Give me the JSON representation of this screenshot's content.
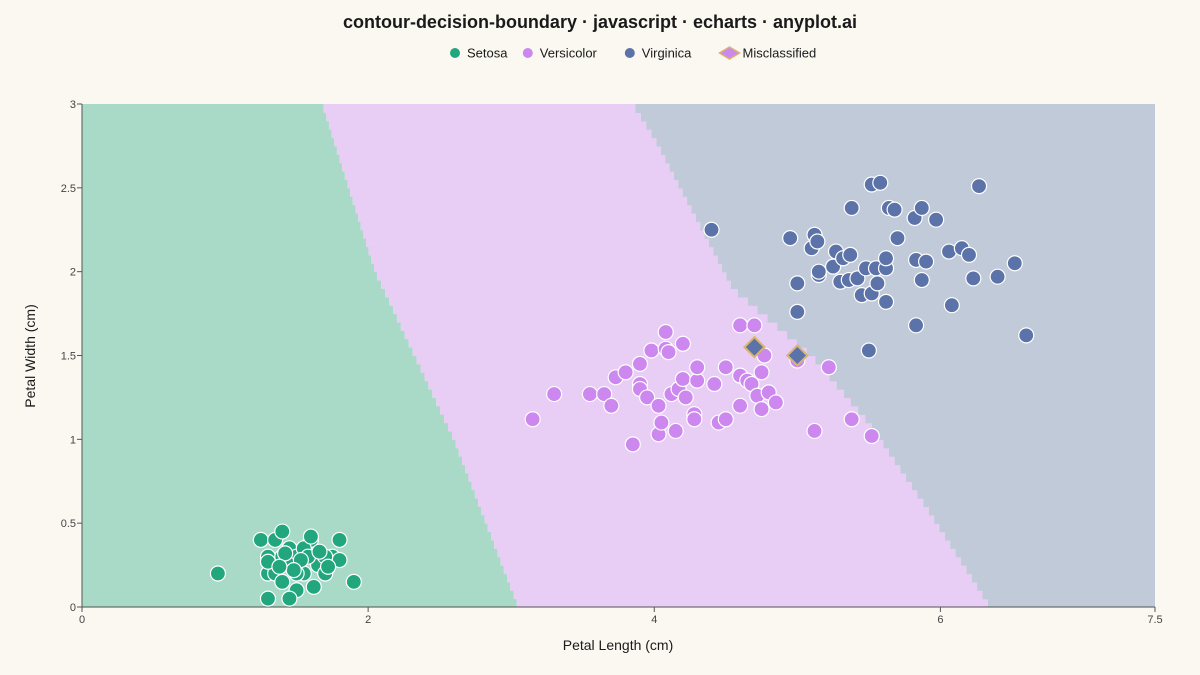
{
  "colors": {
    "setosa": "#22a67e",
    "versicolor": "#cc88ee",
    "virginica": "#5b73a8",
    "region_setosa": "#a9dac7",
    "region_versicolor": "#e8cdf5",
    "region_virginica": "#c1cad8",
    "misclassified_fill": "#5b73a8",
    "misclassified_stroke": "#d8b46e",
    "background": "#faf8f1"
  },
  "chart_data": {
    "type": "scatter",
    "title": "contour-decision-boundary · javascript · echarts · anyplot.ai",
    "xlabel": "Petal Length (cm)",
    "ylabel": "Petal Width (cm)",
    "xlim": [
      0,
      7.5
    ],
    "ylim": [
      0,
      3
    ],
    "x_ticks": [
      0,
      2,
      4,
      6,
      7.5
    ],
    "x_tick_labels": [
      "0",
      "2",
      "4",
      "6",
      "7.5"
    ],
    "y_ticks": [
      0,
      0.5,
      1,
      1.5,
      2,
      2.5,
      3
    ],
    "y_tick_labels": [
      "0",
      "0.5",
      "1",
      "1.5",
      "2",
      "2.5",
      "3"
    ],
    "legend": {
      "position": "top-center",
      "entries": [
        "Setosa",
        "Versicolor",
        "Virginica",
        "Misclassified"
      ]
    },
    "decision_boundaries": {
      "setosa_versicolor": [
        [
          3.05,
          0
        ],
        [
          2.6,
          1
        ],
        [
          2.05,
          2
        ],
        [
          1.68,
          3
        ]
      ],
      "versicolor_virginica": [
        [
          6.35,
          0
        ],
        [
          5.9,
          0.6
        ],
        [
          5.5,
          1.1
        ],
        [
          5.1,
          1.5
        ],
        [
          4.55,
          1.9
        ],
        [
          4.0,
          2.8
        ],
        [
          3.85,
          3
        ]
      ]
    },
    "series": [
      {
        "name": "Setosa",
        "points": [
          [
            0.95,
            0.2
          ],
          [
            1.25,
            0.4
          ],
          [
            1.3,
            0.2
          ],
          [
            1.3,
            0.3
          ],
          [
            1.35,
            0.4
          ],
          [
            1.4,
            0.45
          ],
          [
            1.45,
            0.35
          ],
          [
            1.5,
            0.3
          ],
          [
            1.55,
            0.2
          ],
          [
            1.6,
            0.4
          ],
          [
            1.35,
            0.2
          ],
          [
            1.4,
            0.3
          ],
          [
            1.5,
            0.2
          ],
          [
            1.6,
            0.3
          ],
          [
            1.65,
            0.25
          ],
          [
            1.7,
            0.2
          ],
          [
            1.75,
            0.3
          ],
          [
            1.8,
            0.4
          ],
          [
            1.8,
            0.28
          ],
          [
            1.45,
            0.25
          ],
          [
            1.3,
            0.27
          ],
          [
            1.4,
            0.15
          ],
          [
            1.55,
            0.35
          ],
          [
            1.6,
            0.42
          ],
          [
            1.7,
            0.3
          ],
          [
            1.5,
            0.1
          ],
          [
            1.62,
            0.12
          ],
          [
            1.45,
            0.05
          ],
          [
            1.3,
            0.05
          ],
          [
            1.9,
            0.15
          ],
          [
            1.58,
            0.3
          ],
          [
            1.42,
            0.32
          ],
          [
            1.53,
            0.28
          ],
          [
            1.48,
            0.22
          ],
          [
            1.38,
            0.24
          ],
          [
            1.72,
            0.24
          ],
          [
            1.66,
            0.33
          ]
        ]
      },
      {
        "name": "Versicolor",
        "points": [
          [
            3.15,
            1.12
          ],
          [
            3.3,
            1.27
          ],
          [
            3.55,
            1.27
          ],
          [
            3.65,
            1.27
          ],
          [
            3.7,
            1.2
          ],
          [
            3.73,
            1.37
          ],
          [
            3.8,
            1.4
          ],
          [
            3.85,
            0.97
          ],
          [
            3.9,
            1.33
          ],
          [
            3.9,
            1.3
          ],
          [
            3.9,
            1.45
          ],
          [
            3.95,
            1.25
          ],
          [
            3.98,
            1.53
          ],
          [
            4.03,
            1.03
          ],
          [
            4.03,
            1.2
          ],
          [
            4.05,
            1.1
          ],
          [
            4.08,
            1.54
          ],
          [
            4.08,
            1.64
          ],
          [
            4.1,
            1.52
          ],
          [
            4.12,
            1.27
          ],
          [
            4.15,
            1.05
          ],
          [
            4.17,
            1.3
          ],
          [
            4.2,
            1.57
          ],
          [
            4.2,
            1.36
          ],
          [
            4.22,
            1.25
          ],
          [
            4.28,
            1.15
          ],
          [
            4.28,
            1.12
          ],
          [
            4.3,
            1.35
          ],
          [
            4.3,
            1.43
          ],
          [
            4.42,
            1.33
          ],
          [
            4.45,
            1.1
          ],
          [
            4.5,
            1.43
          ],
          [
            4.6,
            1.2
          ],
          [
            4.6,
            1.38
          ],
          [
            4.6,
            1.68
          ],
          [
            4.65,
            1.35
          ],
          [
            4.68,
            1.33
          ],
          [
            4.7,
            1.68
          ],
          [
            4.72,
            1.26
          ],
          [
            4.75,
            1.18
          ],
          [
            4.75,
            1.4
          ],
          [
            4.77,
            1.5
          ],
          [
            4.8,
            1.28
          ],
          [
            4.85,
            1.22
          ],
          [
            4.5,
            1.12
          ],
          [
            5.0,
            1.47
          ],
          [
            5.12,
            1.05
          ],
          [
            5.22,
            1.43
          ],
          [
            5.38,
            1.12
          ],
          [
            5.52,
            1.02
          ]
        ]
      },
      {
        "name": "Virginica",
        "points": [
          [
            4.4,
            2.25
          ],
          [
            4.95,
            2.2
          ],
          [
            5.0,
            1.93
          ],
          [
            5.0,
            1.76
          ],
          [
            5.1,
            2.14
          ],
          [
            5.12,
            2.22
          ],
          [
            5.14,
            2.18
          ],
          [
            5.15,
            1.98
          ],
          [
            5.15,
            2.0
          ],
          [
            5.25,
            2.03
          ],
          [
            5.27,
            2.12
          ],
          [
            5.3,
            1.94
          ],
          [
            5.32,
            2.08
          ],
          [
            5.36,
            1.95
          ],
          [
            5.37,
            2.1
          ],
          [
            5.38,
            2.38
          ],
          [
            5.42,
            1.96
          ],
          [
            5.45,
            1.86
          ],
          [
            5.48,
            2.02
          ],
          [
            5.5,
            1.53
          ],
          [
            5.52,
            1.87
          ],
          [
            5.52,
            2.52
          ],
          [
            5.55,
            2.02
          ],
          [
            5.56,
            1.93
          ],
          [
            5.58,
            2.53
          ],
          [
            5.62,
            1.82
          ],
          [
            5.62,
            2.02
          ],
          [
            5.62,
            2.08
          ],
          [
            5.64,
            2.38
          ],
          [
            5.68,
            2.37
          ],
          [
            5.7,
            2.2
          ],
          [
            5.82,
            2.32
          ],
          [
            5.83,
            1.68
          ],
          [
            5.83,
            2.07
          ],
          [
            5.87,
            1.95
          ],
          [
            5.87,
            2.38
          ],
          [
            5.9,
            2.06
          ],
          [
            5.97,
            2.31
          ],
          [
            6.06,
            2.12
          ],
          [
            6.08,
            1.8
          ],
          [
            6.15,
            2.14
          ],
          [
            6.2,
            2.1
          ],
          [
            6.23,
            1.96
          ],
          [
            6.27,
            2.51
          ],
          [
            6.4,
            1.97
          ],
          [
            6.52,
            2.05
          ],
          [
            6.6,
            1.62
          ]
        ]
      },
      {
        "name": "Misclassified",
        "points": [
          [
            4.7,
            1.55
          ],
          [
            5.0,
            1.5
          ]
        ]
      }
    ]
  }
}
